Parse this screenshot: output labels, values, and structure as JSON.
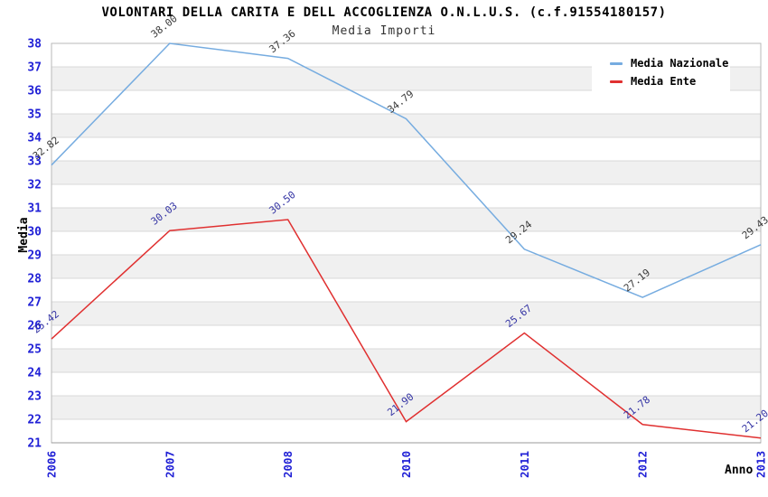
{
  "header": {
    "title": "VOLONTARI DELLA CARITA E DELL ACCOGLIENZA O.N.L.U.S. (c.f.91554180157)",
    "subtitle": "Media Importi"
  },
  "chart_data": {
    "type": "line",
    "title": "VOLONTARI DELLA CARITA E DELL ACCOGLIENZA O.N.L.U.S. (c.f.91554180157)",
    "subtitle": "Media Importi",
    "xlabel": "Anno",
    "ylabel": "Media",
    "categories": [
      "2006",
      "2007",
      "2008",
      "2010",
      "2011",
      "2012",
      "2013"
    ],
    "series": [
      {
        "name": "Media Nazionale",
        "color": "#76ace0",
        "label_color": "#3a3a3a",
        "values": [
          32.82,
          38.0,
          37.36,
          34.79,
          29.24,
          27.19,
          29.43
        ]
      },
      {
        "name": "Media Ente",
        "color": "#e03030",
        "label_color": "#3434a4",
        "values": [
          25.42,
          30.03,
          30.5,
          21.9,
          25.67,
          21.78,
          21.2
        ]
      }
    ],
    "ylim": [
      21,
      38
    ],
    "ytick_step": 1,
    "grid": "horizontal gridlines with alternating shaded bands",
    "legend_position": "top-right",
    "colors": {
      "tick_label": "#2121d6",
      "band": "#ffffff",
      "band_alt": "#f0f0f0",
      "grid": "#d9d9d9",
      "border": "#b9b9b9",
      "axis_line": "#999999"
    }
  }
}
